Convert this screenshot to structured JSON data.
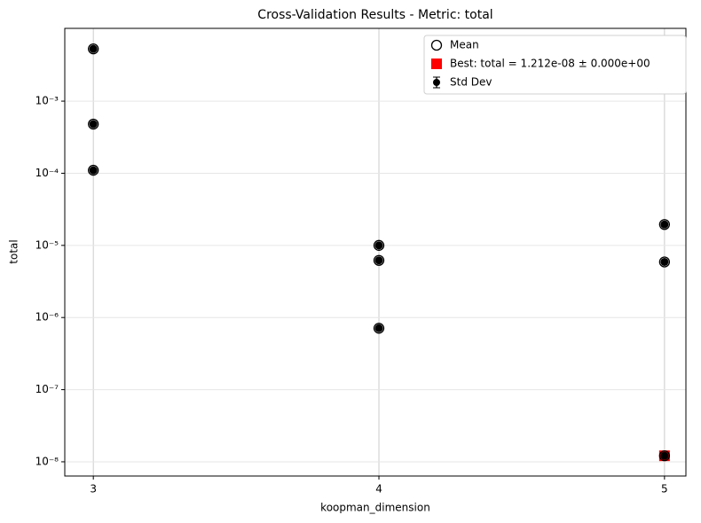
{
  "chart_data": {
    "type": "scatter",
    "title": "Cross-Validation Results - Metric: total",
    "x_label": "koopman_dimension",
    "y_label": "total",
    "log_y": true,
    "grid": true,
    "legend_position": "upper-right",
    "xlim": [
      2.9,
      5.075
    ],
    "xticks": [
      3,
      4,
      5
    ],
    "ylim": [
      6.35e-09,
      0.0102
    ],
    "yticks": [
      {
        "value": 1e-08,
        "label": "10⁻⁸"
      },
      {
        "value": 1e-07,
        "label": "10⁻⁷"
      },
      {
        "value": 1e-06,
        "label": "10⁻⁶"
      },
      {
        "value": 1e-05,
        "label": "10⁻⁵"
      },
      {
        "value": 0.0001,
        "label": "10⁻⁴"
      },
      {
        "value": 0.001,
        "label": "10⁻³"
      }
    ],
    "series": [
      {
        "name": "Mean",
        "marker": "open-circle",
        "color": "#000000",
        "x": [
          3,
          3,
          3,
          4,
          4,
          4,
          5,
          5,
          5
        ],
        "values": [
          0.0053,
          0.00048,
          0.00011,
          1e-05,
          6.2e-06,
          7.1e-07,
          1.95e-05,
          5.9e-06,
          1.212e-08
        ]
      },
      {
        "name": "Best: total = 1.212e-08 ± 0.000e+00",
        "marker": "square",
        "color": "#ff0000",
        "x": [
          5
        ],
        "values": [
          1.212e-08
        ]
      },
      {
        "name": "Std Dev",
        "marker": "errorbar",
        "color": "#000000",
        "x": [
          3,
          3,
          3,
          4,
          4,
          4,
          5,
          5,
          5
        ],
        "values": [
          0.0053,
          0.00048,
          0.00011,
          1e-05,
          6.2e-06,
          7.1e-07,
          1.95e-05,
          5.9e-06,
          1.212e-08
        ]
      }
    ]
  }
}
